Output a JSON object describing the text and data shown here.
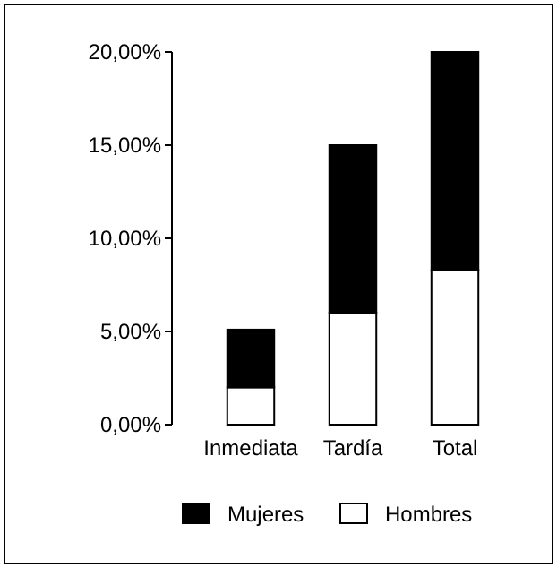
{
  "chart_data": {
    "type": "bar",
    "stacked": true,
    "categories": [
      "Inmediata",
      "Tardía",
      "Total"
    ],
    "series": [
      {
        "name": "Hombres",
        "color": "#ffffff",
        "values": [
          2.0,
          6.0,
          8.3
        ]
      },
      {
        "name": "Mujeres",
        "color": "#000000",
        "values": [
          3.1,
          9.0,
          11.7
        ]
      }
    ],
    "ylim": [
      0,
      20
    ],
    "yticks": [
      {
        "value": 0,
        "label": "0,00%"
      },
      {
        "value": 5,
        "label": "5,00%"
      },
      {
        "value": 10,
        "label": "10,00%"
      },
      {
        "value": 15,
        "label": "15,00%"
      },
      {
        "value": 20,
        "label": "20,00%"
      }
    ],
    "grid": false,
    "legend": "bottom"
  }
}
